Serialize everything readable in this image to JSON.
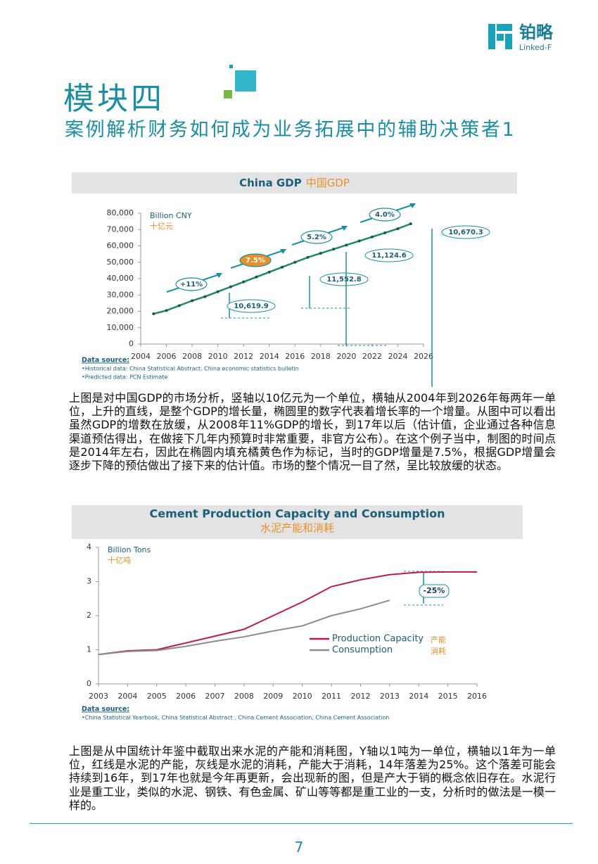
{
  "logo": {
    "name": "铂略",
    "sub": "Linked-F"
  },
  "header": {
    "title": "模块四",
    "subtitle": "案例解析财务如何成为业务拓展中的辅助决策者1"
  },
  "chart_data": [
    {
      "type": "line",
      "title": "China GDP",
      "title_cn": "中国GDP",
      "y_unit": "Billion CNY",
      "y_unit_cn": "十亿元",
      "x": [
        2005,
        2006,
        2007,
        2008,
        2009,
        2010,
        2011,
        2012,
        2013,
        2014,
        2015,
        2016,
        2017,
        2018,
        2019,
        2020,
        2021,
        2022,
        2023,
        2024,
        2025
      ],
      "series": [
        {
          "name": "GDP",
          "color": "#1f8a5c",
          "values": [
            18500,
            20500,
            23500,
            26500,
            29000,
            32000,
            35000,
            38000,
            41000,
            44000,
            47000,
            50000,
            53000,
            55500,
            58000,
            60500,
            63000,
            65500,
            68000,
            70500,
            73500
          ]
        }
      ],
      "xlim": [
        2004,
        2026
      ],
      "xticks": [
        2004,
        2006,
        2008,
        2010,
        2012,
        2014,
        2016,
        2018,
        2020,
        2022,
        2024,
        2026
      ],
      "ylim": [
        0,
        80000
      ],
      "yticks": [
        0,
        {
          "value": 10000,
          "label": "10,000"
        },
        {
          "value": 20000,
          "label": "20,000"
        },
        {
          "value": 30000,
          "label": "30,000"
        },
        {
          "value": 40000,
          "label": "40,000"
        },
        {
          "value": 50000,
          "label": "50,000"
        },
        {
          "value": 60000,
          "label": "60,000"
        },
        {
          "value": 70000,
          "label": "70,000"
        },
        {
          "value": 80000,
          "label": "80,000"
        }
      ],
      "growth_labels": [
        "+11%",
        "7.5%",
        "5.2%",
        "4.0%"
      ],
      "increment_labels": [
        "10,619.9",
        "11,552.8",
        "11,124.6",
        "10,670.3"
      ],
      "source_title": "Data source:",
      "sources": [
        "•Historical data: China Statistical Abstract, China economic statistics bulletin",
        "•Predicted data: PCN Estimate"
      ]
    },
    {
      "type": "line",
      "title": "Cement Production Capacity and Consumption",
      "title_cn": "水泥产能和消耗",
      "y_unit": "Billion Tons",
      "y_unit_cn": "十亿吨",
      "x": [
        2003,
        2004,
        2005,
        2006,
        2007,
        2008,
        2009,
        2010,
        2011,
        2012,
        2013,
        2014,
        2015,
        2016
      ],
      "series": [
        {
          "name": "Production Capacity",
          "label_cn": "产能",
          "color": "#c0184a",
          "values": [
            0.86,
            0.97,
            1.0,
            1.2,
            1.4,
            1.6,
            2.0,
            2.4,
            2.85,
            3.05,
            3.2,
            3.27,
            3.28,
            3.28
          ]
        },
        {
          "name": "Consumption",
          "label_cn": "消耗",
          "color": "#8c8c8c",
          "values": [
            0.86,
            0.95,
            0.98,
            1.1,
            1.25,
            1.38,
            1.55,
            1.7,
            2.0,
            2.2,
            2.45,
            null,
            null,
            null
          ]
        }
      ],
      "xlim": [
        2003,
        2016
      ],
      "xticks": [
        2003,
        2004,
        2005,
        2006,
        2007,
        2008,
        2009,
        2010,
        2011,
        2012,
        2013,
        2014,
        2015,
        2016
      ],
      "ylim": [
        0,
        4
      ],
      "yticks": [
        0,
        1,
        2,
        3,
        4
      ],
      "gap_label": "-25%",
      "source_title": "Data source:",
      "sources": [
        "•China Statistical Yearbook, China Statistical Abstract , China Cement Association, China Cement  Association"
      ]
    }
  ],
  "paragraphs": [
    "上图是对中国GDP的市场分析，竖轴以10亿元为一个单位，横轴从2004年到2026年每两年一单位，上升的直线，是整个GDP的增长量，椭圆里的数字代表着增长率的一个增量。从图中可以看出虽然GDP的增数在放缓，从2008年11%GDP的增长，到17年以后（估计值，企业通过各种信息渠道预估得出，在做接下几年内预算时非常重要，非官方公布）。在这个例子当中，制图的时间点是2014年左右，因此在椭圆内填充橘黄色作为标记，当时的GDP增量是7.5%，根据GDP增量会逐步下降的预估做出了接下来的估计值。市场的整个情况一目了然，呈比较放缓的状态。",
    "上图是从中国统计年鉴中截取出来水泥的产能和消耗图，Y轴以1吨为一单位，横轴以1年为一单位，红线是水泥的产能，灰线是水泥的消耗，产能大于消耗，14年落差为25%。这个落差可能会持续到16年，到17年也就是今年再更新，会出现新的图，但是产大于销的概念依旧存在。水泥行业是重工业，类似的水泥、钢铁、有色金属、矿山等等都是重工业的一支，分析时的做法是一模一样的。"
  ],
  "page_number": "7"
}
